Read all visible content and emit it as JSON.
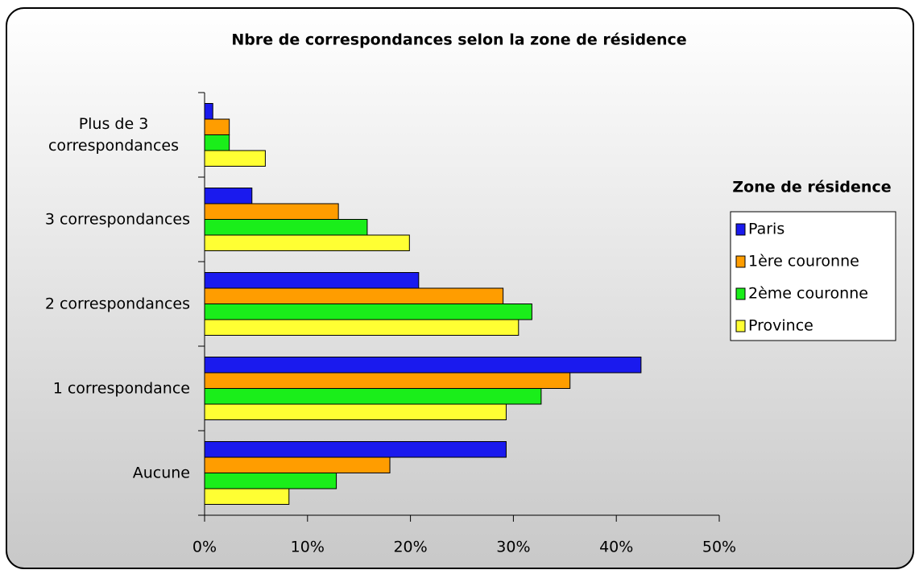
{
  "chart_data": {
    "type": "hbar",
    "title": "Nbre de correspondances selon la zone de résidence",
    "categories": [
      "Plus de 3 correspondances",
      "3 correspondances",
      "2 correspondances",
      "1 correspondance",
      "Aucune"
    ],
    "series": [
      {
        "name": "Paris",
        "color": "#1a1aee",
        "values": [
          0.8,
          4.6,
          20.8,
          42.4,
          29.3
        ]
      },
      {
        "name": "1ère couronne",
        "color": "#ff9d00",
        "values": [
          2.4,
          13.0,
          29.0,
          35.5,
          18.0
        ]
      },
      {
        "name": "2ème couronne",
        "color": "#1aee1a",
        "values": [
          2.4,
          15.8,
          31.8,
          32.7,
          12.8
        ]
      },
      {
        "name": "Province",
        "color": "#ffff33",
        "values": [
          5.9,
          19.9,
          30.5,
          29.3,
          8.2
        ]
      }
    ],
    "legend_title": "Zone de résidence",
    "xlim": [
      0,
      50
    ],
    "xticks": [
      {
        "value": 0,
        "label": "0%"
      },
      {
        "value": 10,
        "label": "10%"
      },
      {
        "value": 20,
        "label": "20%"
      },
      {
        "value": 30,
        "label": "30%"
      },
      {
        "value": 40,
        "label": "40%"
      },
      {
        "value": 50,
        "label": "50%"
      }
    ],
    "legend_position": "right"
  }
}
